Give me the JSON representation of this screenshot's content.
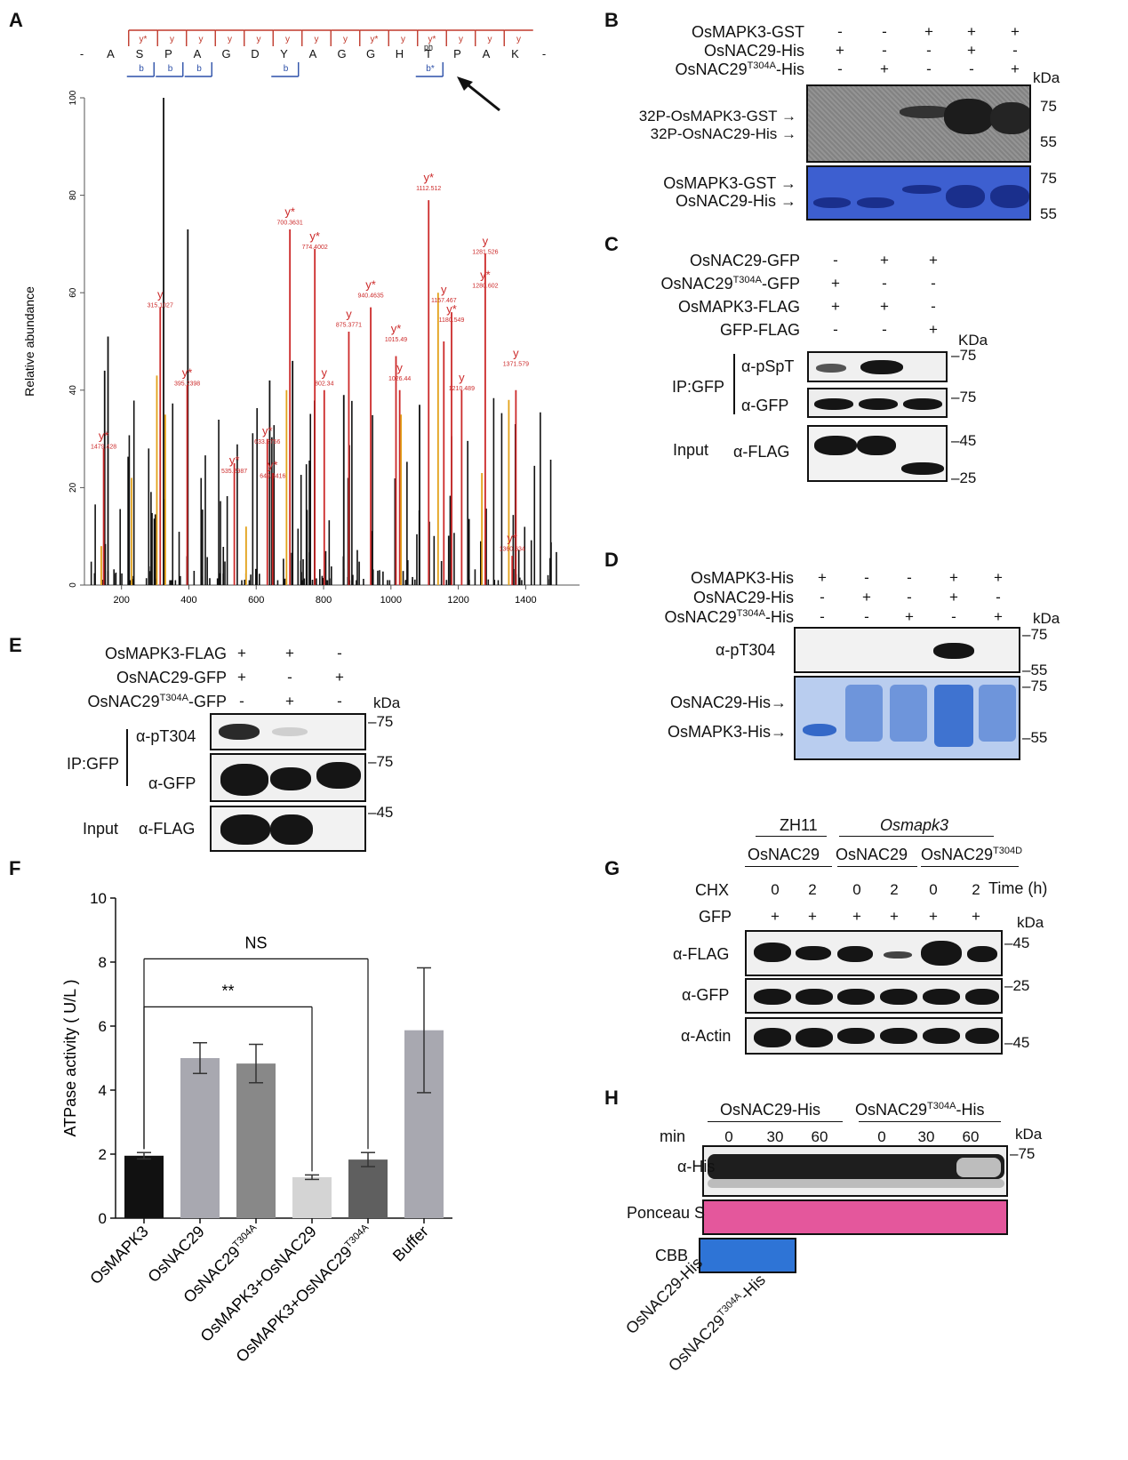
{
  "panels": {
    "A": "A",
    "B": "B",
    "C": "C",
    "D": "D",
    "E": "E",
    "F": "F",
    "G": "G",
    "H": "H"
  },
  "panelA": {
    "sequence": [
      "-",
      "A",
      "S",
      "P",
      "A",
      "G",
      "D",
      "Y",
      "A",
      "G",
      "G",
      "H",
      "T",
      "P",
      "A",
      "K",
      "-"
    ],
    "y_marks": [
      "y*",
      "y",
      "y",
      "y",
      "y",
      "y",
      "y",
      "y",
      "y*",
      "y",
      "y*",
      "y",
      "y",
      "y"
    ],
    "b_marks": [
      "b",
      "b",
      "b",
      "b",
      "b*"
    ],
    "ph": "ph",
    "ylabel": "Relative abundance",
    "yticks": [
      "0",
      "20",
      "40",
      "60",
      "80",
      "100"
    ],
    "xticks": [
      "200",
      "400",
      "600",
      "800",
      "1000",
      "1200",
      "1400"
    ],
    "annotations": [
      {
        "t": "y*",
        "v": "1479.428"
      },
      {
        "t": "y",
        "v": "315.1027"
      },
      {
        "t": "y*",
        "v": "395.2398"
      },
      {
        "t": "y*",
        "v": "535.2987"
      },
      {
        "t": "y*",
        "v": "633.2756"
      },
      {
        "t": "y*",
        "v": "649.3416"
      },
      {
        "t": "y*",
        "v": "700.3631"
      },
      {
        "t": "y*",
        "v": "774.4002"
      },
      {
        "t": "y",
        "v": "802.34"
      },
      {
        "t": "y",
        "v": "875.3771"
      },
      {
        "t": "y*",
        "v": "940.4635"
      },
      {
        "t": "y*",
        "v": "1015.49"
      },
      {
        "t": "y",
        "v": "1026.44"
      },
      {
        "t": "y*",
        "v": "1112.512"
      },
      {
        "t": "y",
        "v": "1157.467"
      },
      {
        "t": "y*",
        "v": "1180.549"
      },
      {
        "t": "y",
        "v": "1210.489"
      },
      {
        "t": "y",
        "v": "1281.526"
      },
      {
        "t": "y*",
        "v": "1280.602"
      },
      {
        "t": "y",
        "v": "1371.579"
      },
      {
        "t": "y*",
        "v": "1360.634"
      }
    ]
  },
  "panelB": {
    "rows": [
      {
        "label": "OsMAPK3-GST",
        "vals": [
          "-",
          "-",
          "+",
          "+",
          "+"
        ]
      },
      {
        "label": "OsNAC29-His",
        "vals": [
          "+",
          "-",
          "-",
          "+",
          "-"
        ]
      },
      {
        "label": "OsNAC29T304A-His",
        "vals": [
          "-",
          "+",
          "-",
          "-",
          "+"
        ]
      }
    ],
    "kda": "kDa",
    "auto_labels": [
      "32P-OsMAPK3-GST",
      "32P-OsNAC29-His"
    ],
    "cbb_labels": [
      "OsMAPK3-GST",
      "OsNAC29-His"
    ],
    "markers_top": [
      "75",
      "55"
    ],
    "markers_bottom": [
      "75",
      "55"
    ]
  },
  "panelC": {
    "rows": [
      {
        "label": "OsNAC29-GFP",
        "vals": [
          "-",
          "+",
          "+"
        ]
      },
      {
        "label": "OsNAC29T304A-GFP",
        "vals": [
          "+",
          "-",
          "-"
        ]
      },
      {
        "label": "OsMAPK3-FLAG",
        "vals": [
          "+",
          "+",
          "-"
        ]
      },
      {
        "label": "GFP-FLAG",
        "vals": [
          "-",
          "-",
          "+"
        ]
      }
    ],
    "kda": "KDa",
    "ip": "IP:GFP",
    "input": "Input",
    "blots": [
      "α-pSpT",
      "α-GFP",
      "α-FLAG"
    ],
    "markers": [
      "75",
      "75",
      "45",
      "25"
    ]
  },
  "panelD": {
    "rows": [
      {
        "label": "OsMAPK3-His",
        "vals": [
          "+",
          "-",
          "-",
          "+",
          "+"
        ]
      },
      {
        "label": "OsNAC29-His",
        "vals": [
          "-",
          "+",
          "-",
          "+",
          "-"
        ]
      },
      {
        "label": "OsNAC29T304A-His",
        "vals": [
          "-",
          "-",
          "+",
          "-",
          "+"
        ]
      }
    ],
    "kda": "kDa",
    "blot1": "α-pT304",
    "cbb_labels": [
      "OsNAC29-His",
      "OsMAPK3-His"
    ],
    "markers": [
      "75",
      "55",
      "75",
      "55"
    ]
  },
  "panelE": {
    "rows": [
      {
        "label": "OsMAPK3-FLAG",
        "vals": [
          "+",
          "+",
          "-"
        ]
      },
      {
        "label": "OsNAC29-GFP",
        "vals": [
          "+",
          "-",
          "+"
        ]
      },
      {
        "label": "OsNAC29T304A-GFP",
        "vals": [
          "-",
          "+",
          "-"
        ]
      }
    ],
    "kda": "kDa",
    "ip": "IP:GFP",
    "input": "Input",
    "blots": [
      "α-pT304",
      "α-GFP",
      "α-FLAG"
    ],
    "markers": [
      "75",
      "75",
      "45"
    ]
  },
  "panelG": {
    "group1": "ZH11",
    "group2": "Osmapk3",
    "constructs": [
      "OsNAC29",
      "OsNAC29",
      "OsNAC29T304D"
    ],
    "chx": "CHX",
    "gfp": "GFP",
    "times": [
      "0",
      "2",
      "0",
      "2",
      "0",
      "2"
    ],
    "plus": [
      "+",
      "+",
      "+",
      "+",
      "+",
      "+"
    ],
    "time_label": "Time (h)",
    "kda": "kDa",
    "blots": [
      "α-FLAG",
      "α-GFP",
      "α-Actin"
    ],
    "markers": [
      "45",
      "25",
      "45"
    ]
  },
  "panelH": {
    "groups": [
      "OsNAC29-His",
      "OsNAC29T304A-His"
    ],
    "min": "min",
    "times": [
      "0",
      "30",
      "60",
      "0",
      "30",
      "60"
    ],
    "kda": "kDa",
    "blots": [
      "α-His",
      "Ponceau S",
      "CBB"
    ],
    "marker": "75",
    "cbb_lanes": [
      "OsNAC29-His",
      "OsNAC29T304A-His"
    ]
  },
  "chart_data": {
    "type": "bar",
    "ylabel": "ATPase activity ( U/L )",
    "ylim": [
      0,
      10
    ],
    "yticks": [
      "0",
      "2",
      "4",
      "6",
      "8",
      "10"
    ],
    "categories": [
      "OsMAPK3",
      "OsNAC29",
      "OsNAC29T304A",
      "OsMAPK3+OsNAC29",
      "OsMAPK3+OsNAC29T304A",
      "Buffer"
    ],
    "values": [
      1.95,
      5.0,
      4.83,
      1.28,
      1.83,
      5.87
    ],
    "errors": [
      0.1,
      0.48,
      0.6,
      0.07,
      0.22,
      1.95
    ],
    "colors": [
      "#111111",
      "#a8a8b0",
      "#888888",
      "#d4d4d4",
      "#5f5f5f",
      "#a8a8b0"
    ],
    "sig": [
      {
        "label": "NS",
        "from": 0,
        "to": 4
      },
      {
        "label": "**",
        "from": 0,
        "to": 3
      }
    ]
  }
}
